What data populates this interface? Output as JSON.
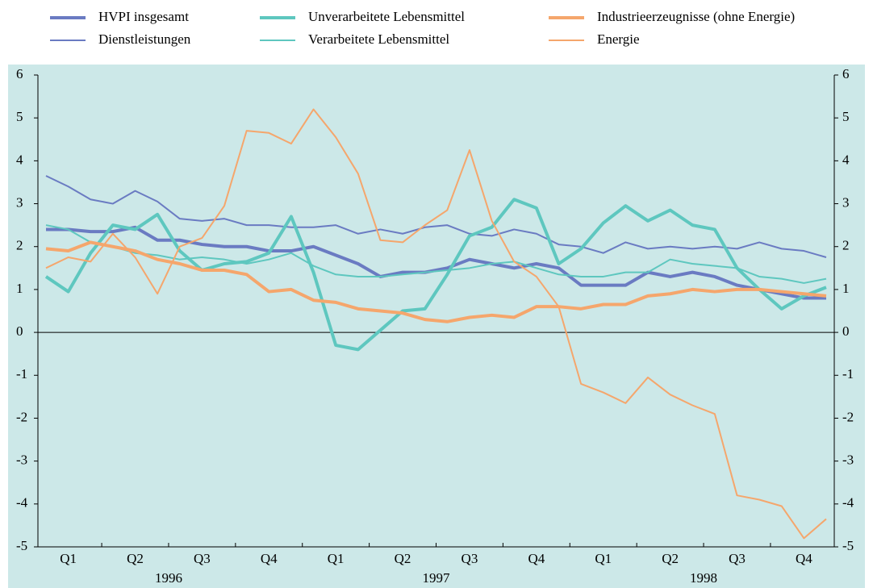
{
  "chart_data": {
    "type": "line",
    "series": [
      {
        "name": "HVPI insgesamt",
        "color": "#6a7bc2",
        "width": "thick",
        "values": [
          2.4,
          2.4,
          2.35,
          2.35,
          2.45,
          2.15,
          2.15,
          2.05,
          2.0,
          2.0,
          1.9,
          1.9,
          2.0,
          1.8,
          1.6,
          1.3,
          1.4,
          1.4,
          1.5,
          1.7,
          1.6,
          1.5,
          1.6,
          1.5,
          1.1,
          1.1,
          1.1,
          1.4,
          1.3,
          1.4,
          1.3,
          1.1,
          1.0,
          0.9,
          0.8,
          0.8
        ]
      },
      {
        "name": "Dienstleistungen",
        "color": "#6a7bc2",
        "width": "thin",
        "values": [
          3.65,
          3.4,
          3.1,
          3.0,
          3.3,
          3.05,
          2.65,
          2.6,
          2.65,
          2.5,
          2.5,
          2.45,
          2.45,
          2.5,
          2.3,
          2.4,
          2.3,
          2.45,
          2.5,
          2.3,
          2.25,
          2.4,
          2.3,
          2.05,
          2.0,
          1.85,
          2.1,
          1.95,
          2.0,
          1.95,
          2.0,
          1.95,
          2.1,
          1.95,
          1.9,
          1.75
        ]
      },
      {
        "name": "Unverarbeitete Lebensmittel",
        "color": "#5ec7bf",
        "width": "thick",
        "values": [
          1.3,
          0.95,
          1.85,
          2.5,
          2.4,
          2.75,
          1.9,
          1.45,
          1.6,
          1.65,
          1.85,
          2.7,
          1.4,
          -0.3,
          -0.4,
          0.05,
          0.5,
          0.55,
          1.35,
          2.25,
          2.45,
          3.1,
          2.9,
          1.6,
          1.95,
          2.55,
          2.95,
          2.6,
          2.85,
          2.5,
          2.4,
          1.5,
          1.0,
          0.55,
          0.85,
          1.05
        ]
      },
      {
        "name": "Verarbeitete Lebensmittel",
        "color": "#5ec7bf",
        "width": "thin",
        "values": [
          2.5,
          2.4,
          2.1,
          2.0,
          1.85,
          1.8,
          1.7,
          1.75,
          1.7,
          1.6,
          1.7,
          1.85,
          1.55,
          1.35,
          1.3,
          1.3,
          1.35,
          1.4,
          1.45,
          1.5,
          1.6,
          1.65,
          1.5,
          1.35,
          1.3,
          1.3,
          1.4,
          1.4,
          1.7,
          1.6,
          1.55,
          1.5,
          1.3,
          1.25,
          1.15,
          1.25
        ]
      },
      {
        "name": "Industrieerzeugnisse (ohne Energie)",
        "color": "#f5a66c",
        "width": "thick",
        "values": [
          1.95,
          1.9,
          2.1,
          2.0,
          1.9,
          1.7,
          1.6,
          1.45,
          1.45,
          1.35,
          0.95,
          1.0,
          0.75,
          0.7,
          0.55,
          0.5,
          0.45,
          0.3,
          0.25,
          0.35,
          0.4,
          0.35,
          0.6,
          0.6,
          0.55,
          0.65,
          0.65,
          0.85,
          0.9,
          1.0,
          0.95,
          1.0,
          1.0,
          0.95,
          0.9,
          0.85
        ]
      },
      {
        "name": "Energie",
        "color": "#f5a66c",
        "width": "thin",
        "values": [
          1.5,
          1.75,
          1.65,
          2.3,
          1.75,
          0.9,
          2.0,
          2.2,
          2.95,
          4.7,
          4.65,
          4.4,
          5.2,
          4.55,
          3.7,
          2.15,
          2.1,
          2.5,
          2.85,
          4.25,
          2.6,
          1.65,
          1.3,
          0.6,
          -1.2,
          -1.4,
          -1.65,
          -1.05,
          -1.45,
          -1.7,
          -1.9,
          -3.8,
          -3.9,
          -4.05,
          -4.8,
          -4.35
        ]
      }
    ],
    "years": [
      {
        "label": "1996",
        "quarters": [
          "Q1",
          "Q2",
          "Q3",
          "Q4"
        ]
      },
      {
        "label": "1997",
        "quarters": [
          "Q1",
          "Q2",
          "Q3",
          "Q4"
        ]
      },
      {
        "label": "1998",
        "quarters": [
          "Q1",
          "Q2",
          "Q3",
          "Q4"
        ]
      }
    ],
    "ylim": [
      -5,
      6
    ],
    "yticks": [
      -5,
      -4,
      -3,
      -2,
      -1,
      0,
      1,
      2,
      3,
      4,
      5,
      6
    ],
    "y2lim": [
      -5,
      6
    ],
    "y2ticks": [
      -5,
      -4,
      -3,
      -2,
      -1,
      0,
      1,
      2,
      3,
      4,
      5,
      6
    ],
    "background": "#cce8e8"
  }
}
